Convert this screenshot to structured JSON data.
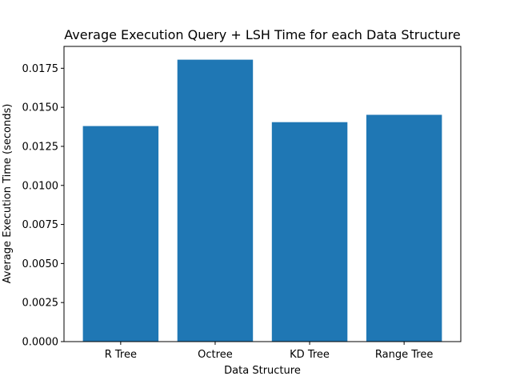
{
  "chart_data": {
    "type": "bar",
    "title": "Average Execution Query + LSH Time for each Data Structure",
    "xlabel": "Data Structure",
    "ylabel": "Average Execution Time (seconds)",
    "categories": [
      "R Tree",
      "Octree",
      "KD Tree",
      "Range Tree"
    ],
    "values": [
      0.0138,
      0.01805,
      0.01405,
      0.01452
    ],
    "ylim": [
      0,
      0.0189
    ],
    "yticks": [
      "0.0000",
      "0.0025",
      "0.0050",
      "0.0075",
      "0.0100",
      "0.0125",
      "0.0150",
      "0.0175"
    ],
    "ytick_values": [
      0,
      0.0025,
      0.005,
      0.0075,
      0.01,
      0.0125,
      0.015,
      0.0175
    ],
    "bar_color": "#1f77b4",
    "grid": false,
    "legend": "none"
  }
}
